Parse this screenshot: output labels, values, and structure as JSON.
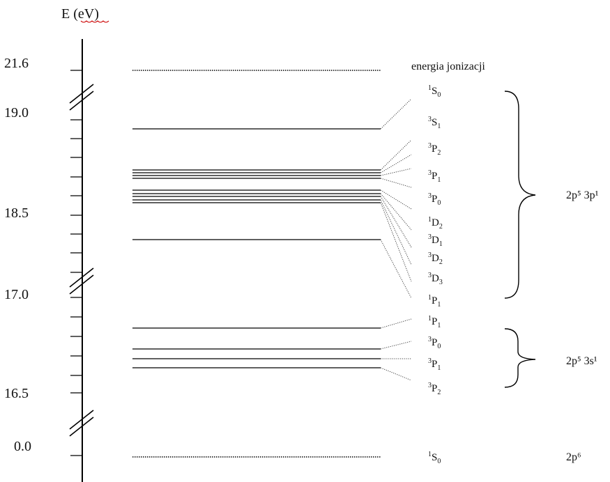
{
  "axis": {
    "label": "E (eV)"
  },
  "ticks": [
    {
      "label": "21.6",
      "name": "tick-21-6"
    },
    {
      "label": "19.0",
      "name": "tick-19-0"
    },
    {
      "label": "18.5",
      "name": "tick-18-5"
    },
    {
      "label": "17.0",
      "name": "tick-17-0"
    },
    {
      "label": "16.5",
      "name": "tick-16-5"
    },
    {
      "label": "0.0",
      "name": "tick-0-0"
    }
  ],
  "ionization_label": "energia jonizacji",
  "configurations": {
    "p": "2p⁵ 3p¹",
    "s": "2p⁵ 3s¹",
    "ground": "2p⁶"
  },
  "terms_3p": [
    {
      "sup": "1",
      "L": "S",
      "sub": "0"
    },
    {
      "sup": "3",
      "L": "S",
      "sub": "1"
    },
    {
      "sup": "3",
      "L": "P",
      "sub": "2"
    },
    {
      "sup": "3",
      "L": "P",
      "sub": "1"
    },
    {
      "sup": "3",
      "L": "P",
      "sub": "0"
    },
    {
      "sup": "1",
      "L": "D",
      "sub": "2"
    },
    {
      "sup": "3",
      "L": "D",
      "sub": "1"
    },
    {
      "sup": "3",
      "L": "D",
      "sub": "2"
    },
    {
      "sup": "3",
      "L": "D",
      "sub": "3"
    },
    {
      "sup": "1",
      "L": "P",
      "sub": "1"
    }
  ],
  "terms_3s": [
    {
      "sup": "1",
      "L": "P",
      "sub": "1"
    },
    {
      "sup": "3",
      "L": "P",
      "sub": "0"
    },
    {
      "sup": "3",
      "L": "P",
      "sub": "1"
    },
    {
      "sup": "3",
      "L": "P",
      "sub": "2"
    }
  ],
  "ground_term": {
    "sup": "1",
    "L": "S",
    "sub": "0"
  }
}
